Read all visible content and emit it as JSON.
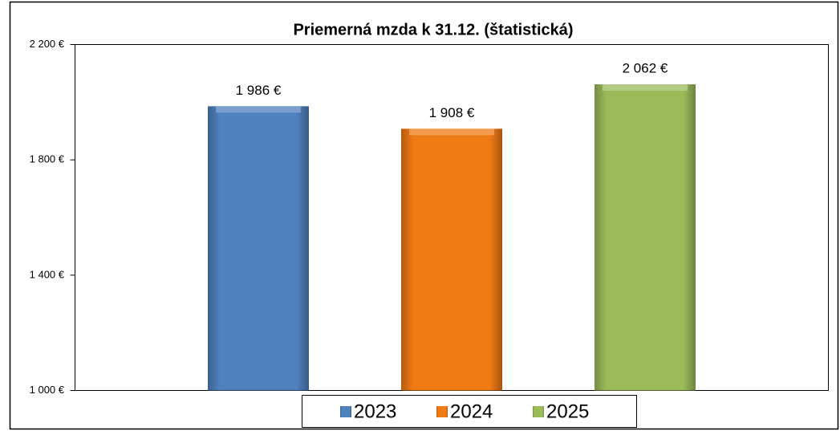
{
  "chart_data": {
    "type": "bar",
    "title": "Priemerná mzda k 31.12. (štatistická)",
    "categories": [
      null
    ],
    "series": [
      {
        "name": "2023",
        "color": "#4f81bd",
        "values": [
          1986
        ],
        "value_labels": [
          "1 986 €"
        ]
      },
      {
        "name": "2024",
        "color": "#f07a14",
        "values": [
          1908
        ],
        "value_labels": [
          "1 908 €"
        ]
      },
      {
        "name": "2025",
        "color": "#9bbb59",
        "values": [
          2062
        ],
        "value_labels": [
          "2 062 €"
        ]
      }
    ],
    "ylim": [
      1000,
      2200
    ],
    "yticks": [
      {
        "value": 1000,
        "label": "1 000 €"
      },
      {
        "value": 1400,
        "label": "1 400 €"
      },
      {
        "value": 1800,
        "label": "1 800 €"
      },
      {
        "value": 2200,
        "label": "2 200 €"
      }
    ],
    "legend": "bottom",
    "grid": false
  }
}
